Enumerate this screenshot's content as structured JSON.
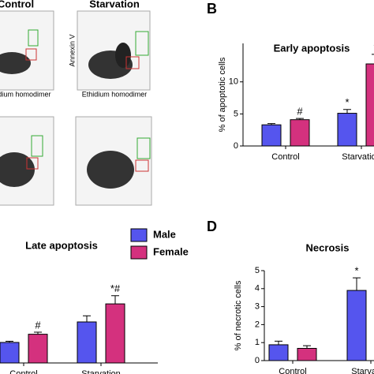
{
  "figure": {
    "panel_labels": [
      "B",
      "D"
    ],
    "flow": {
      "titles": [
        "Control",
        "Starvation"
      ],
      "x_label": "Ethidium homodimer",
      "x_label_cropped": "idium homodimer",
      "y_label": "Annexin V"
    }
  },
  "chart_data": [
    {
      "type": "bar",
      "title": "Early apoptosis",
      "y_label": "% of apoptotic cells",
      "categories": [
        "Control",
        "Starvation"
      ],
      "series": [
        {
          "name": "Male",
          "color": "#5555ee",
          "values": [
            3.3,
            5.1
          ],
          "errors": [
            0.2,
            0.6
          ],
          "markers": [
            null,
            "*"
          ]
        },
        {
          "name": "Female",
          "color": "#d4317e",
          "values": [
            4.1,
            12.8
          ],
          "errors": [
            0.2,
            1.5
          ],
          "markers": [
            "#",
            "*"
          ]
        }
      ],
      "ylim": [
        0,
        16
      ],
      "yticks": [
        0,
        5,
        10
      ]
    },
    {
      "type": "bar",
      "title": "Late apoptosis",
      "categories": [
        "Control",
        "Starvation"
      ],
      "series": [
        {
          "name": "Male",
          "color": "#5555ee",
          "values": [
            5,
            10
          ],
          "errors": [
            0.3,
            1.5
          ],
          "markers": [
            null,
            null
          ]
        },
        {
          "name": "Female",
          "color": "#d4317e",
          "values": [
            7,
            14.4
          ],
          "errors": [
            0.5,
            2
          ],
          "markers": [
            "#",
            "*#"
          ]
        }
      ],
      "ylim": [
        0,
        25
      ],
      "legend": "top-right"
    },
    {
      "type": "bar",
      "title": "Necrosis",
      "y_label": "% of necrotic cells",
      "categories": [
        "Control",
        "Starvation"
      ],
      "series": [
        {
          "name": "Male",
          "color": "#5555ee",
          "values": [
            0.88,
            3.9
          ],
          "errors": [
            0.2,
            0.7
          ],
          "markers": [
            null,
            "*"
          ]
        },
        {
          "name": "Female",
          "color": "#d4317e",
          "values": [
            0.68,
            null
          ],
          "errors": [
            0.15,
            null
          ],
          "markers": [
            null,
            null
          ]
        }
      ],
      "ylim": [
        0,
        5
      ],
      "yticks": [
        0,
        1,
        2,
        3,
        4,
        5
      ]
    }
  ]
}
